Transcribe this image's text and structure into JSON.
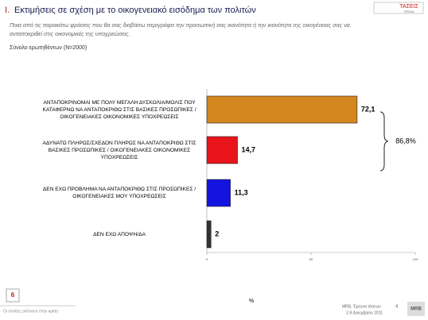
{
  "header": {
    "title_number": "I.",
    "title": "Εκτιμήσεις σε σχέση με το οικογενειακό εισόδημα των πολιτών",
    "subtitle": "Ποια από τις παρακάτω φράσεις που θα σας διαβάσω περιγράφει την προσωπική σας ικανότητα ή την ικανότητα της οικογένειας σας να ανταποκριθεί στις οικονομικές της υποχρεώσεις.",
    "base": "Σύνολο ερωτηθέντων (Ν=2000)",
    "logo": "ΤΑΣΕΙΣ",
    "logo_sub": "TREND"
  },
  "chart_data": {
    "type": "bar",
    "orientation": "horizontal",
    "categories": [
      "ΑΝΤΑΠΟΚΡΙΝΟΜΑΙ ΜΕ ΠΟΛΥ ΜΕΓΑΛΗ ΔΥΣΚΟΛΙΑ/ΜΟΛΙΣ ΠΟΥ ΚΑΤΑΦΕΡΝΩ ΝΑ ΑΝΤΑΠΟΚΡΙΘΩ ΣΤΙΣ ΒΑΣΙΚΕΣ ΠΡΟΣΩΠΙΚΕΣ / ΟΙΚΟΓΕΝΕΙΑΚΕΣ ΟΙΚΟΝΟΜΙΚΕΣ ΥΠΟΧΡΕΩΣΕΙΣ",
      "ΑΔΥΝΑΤΩ ΠΛΗΡΩΣ/ΣΧΕΔΟΝ ΠΛΗΡΩΣ ΝΑ ΑΝΤΑΠΟΚΡΙΘΩ ΣΤΙΣ ΒΑΣΙΚΕΣ ΠΡΟΣΩΠΙΚΕΣ / ΟΙΚΟΓΕΝΕΙΑΚΕΣ ΟΙΚΟΝΟΜΙΚΕΣ ΥΠΟΧΡΕΩΣΕΙΣ",
      "ΔΕΝ ΕΧΩ ΠΡΟΒΛΗΜΑ ΝΑ ΑΝΤΑΠΟΚΡΙΘΩ ΣΤΙΣ ΠΡΟΣΩΠΙΚΕΣ / ΟΙΚΟΓΕΝΕΙΑΚΕΣ ΜΟΥ ΥΠΟΧΡΕΩΣΕΙΣ",
      "ΔΕΝ ΕΧΩ ΑΠΟΨΗ/ΔΑ"
    ],
    "values": [
      72.1,
      14.7,
      11.3,
      2
    ],
    "value_labels": [
      "72,1",
      "14,7",
      "11,3",
      "2"
    ],
    "colors": [
      "#d4861f",
      "#e8141a",
      "#1414e0",
      "#333333"
    ],
    "xlim": [
      0,
      100
    ],
    "xticks": [
      0,
      50,
      100
    ],
    "xlabel": "%",
    "annotation": "86,8%"
  },
  "footer": {
    "page": "6",
    "left": "Οι πολίτες απέναντι στην κρίση",
    "source": "MRB, Έρευνα τάσεων",
    "wave": "4",
    "dates": "2-9 Δεκεμβρίου 2011",
    "logo": "MRB"
  }
}
